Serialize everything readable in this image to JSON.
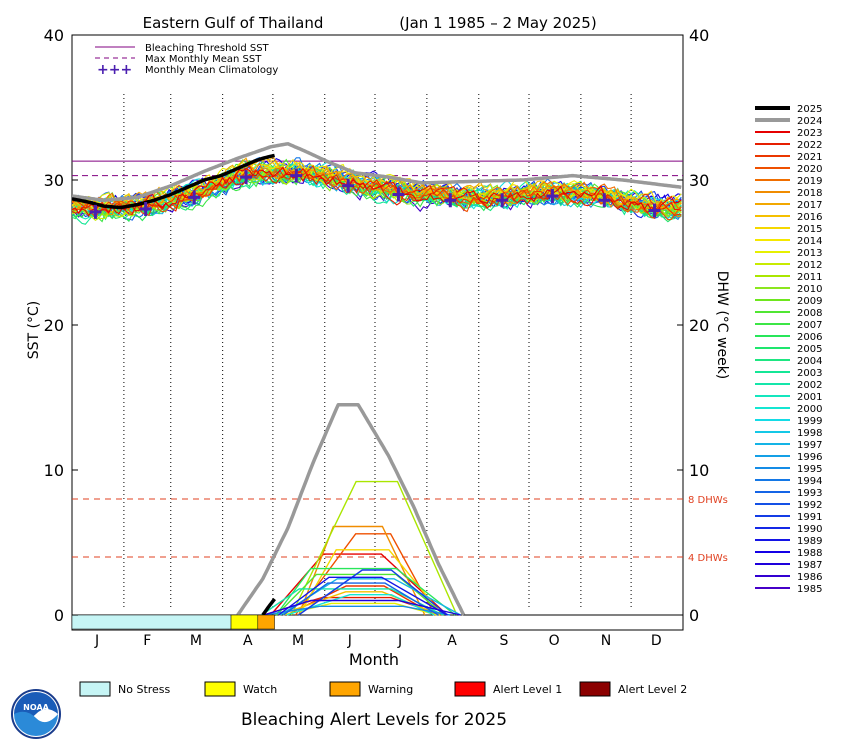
{
  "chart_data": {
    "type": "line",
    "title": "Eastern Gulf of Thailand",
    "date_range": "(Jan 1 1985 – 2 May 2025)",
    "xlabel": "Month",
    "ylabel_left": "SST (°C)",
    "ylabel_right": "DHW (°C week)",
    "ylim": [
      0,
      40
    ],
    "y_ticks": [
      0,
      10,
      20,
      30,
      40
    ],
    "x_ticks": [
      "J",
      "F",
      "M",
      "A",
      "M",
      "J",
      "J",
      "A",
      "S",
      "O",
      "N",
      "D"
    ],
    "bleaching_threshold_sst": 31.3,
    "max_monthly_mean_sst": 30.3,
    "dhw_reference_lines": [
      {
        "value": 8,
        "label": "8 DHWs"
      },
      {
        "value": 4,
        "label": "4 DHWs"
      }
    ],
    "legend_top": [
      {
        "label": "Bleaching Threshold SST",
        "color": "#800080",
        "style": "solid"
      },
      {
        "label": "Max Monthly Mean SST",
        "color": "#800080",
        "style": "dashed"
      },
      {
        "label": "Monthly Mean Climatology",
        "color": "#4b1fb0",
        "style": "plus"
      }
    ],
    "climatology": {
      "doy": [
        15,
        45,
        74,
        105,
        135,
        166,
        196,
        227,
        258,
        288,
        319,
        349
      ],
      "values": [
        27.8,
        28.0,
        28.8,
        30.2,
        30.3,
        29.6,
        29.0,
        28.6,
        28.6,
        28.9,
        28.6,
        27.9
      ]
    },
    "years": [
      "2025",
      "2024",
      "2023",
      "2022",
      "2021",
      "2020",
      "2019",
      "2018",
      "2017",
      "2016",
      "2015",
      "2014",
      "2013",
      "2012",
      "2011",
      "2010",
      "2009",
      "2008",
      "2007",
      "2006",
      "2005",
      "2004",
      "2003",
      "2002",
      "2001",
      "2000",
      "1999",
      "1998",
      "1997",
      "1996",
      "1995",
      "1994",
      "1993",
      "1992",
      "1991",
      "1990",
      "1989",
      "1988",
      "1987",
      "1986",
      "1985"
    ],
    "year_colors": [
      "#000000",
      "#999999",
      "#e60000",
      "#e61e00",
      "#eb3700",
      "#ef5000",
      "#f06e00",
      "#f08c00",
      "#f2a800",
      "#f5c000",
      "#f5d800",
      "#f5e800",
      "#e6f000",
      "#c8eb00",
      "#aae600",
      "#8ce61e",
      "#6ee61e",
      "#50e632",
      "#3ce646",
      "#28e65a",
      "#1ee66e",
      "#1ee682",
      "#14e696",
      "#14e6aa",
      "#14e6be",
      "#14e6d2",
      "#14dce6",
      "#14c8e6",
      "#14b4e6",
      "#14a0e6",
      "#148ce6",
      "#1478e6",
      "#1464e6",
      "#1450e6",
      "#143ce6",
      "#1428e6",
      "#1414e6",
      "#1400e6",
      "#1e00dc",
      "#3200d2",
      "#4600c8"
    ],
    "series_2025_sst": {
      "doy": [
        1,
        10,
        20,
        30,
        40,
        50,
        60,
        70,
        80,
        90,
        100,
        110,
        115,
        122
      ],
      "values": [
        28.7,
        28.5,
        28.2,
        28.1,
        28.3,
        28.6,
        29.0,
        29.5,
        30.0,
        30.3,
        30.8,
        31.3,
        31.5,
        31.7
      ]
    },
    "series_2024_sst": {
      "doy": [
        1,
        20,
        40,
        60,
        80,
        100,
        120,
        130,
        140,
        155,
        170,
        190,
        210,
        240,
        270,
        300,
        330,
        365
      ],
      "values": [
        28.9,
        28.6,
        28.8,
        29.6,
        30.6,
        31.5,
        32.3,
        32.5,
        32.0,
        31.2,
        30.5,
        30.2,
        29.8,
        29.9,
        30.0,
        30.3,
        30.0,
        29.5
      ]
    },
    "series_2024_dhw": {
      "doy": [
        100,
        115,
        130,
        145,
        160,
        172,
        190,
        205,
        220,
        235
      ],
      "values": [
        0,
        2.5,
        6.0,
        10.5,
        14.5,
        14.5,
        11.0,
        7.5,
        3.5,
        0
      ]
    },
    "series_2025_dhw": {
      "doy": [
        115,
        118,
        122
      ],
      "values": [
        0,
        0.5,
        1.1
      ]
    },
    "alert_bar": [
      {
        "level": "No Stress",
        "start_doy": 1,
        "end_doy": 96
      },
      {
        "level": "Watch",
        "start_doy": 96,
        "end_doy": 112
      },
      {
        "level": "Warning",
        "start_doy": 112,
        "end_doy": 122
      }
    ],
    "alert_levels": [
      {
        "label": "No Stress",
        "color": "#c6f5f5"
      },
      {
        "label": "Watch",
        "color": "#ffff00"
      },
      {
        "label": "Warning",
        "color": "#ffa500"
      },
      {
        "label": "Alert Level 1",
        "color": "#ff0000"
      },
      {
        "label": "Alert Level 2",
        "color": "#8b0000"
      }
    ],
    "bottom_title": "Bleaching Alert Levels for 2025",
    "logo_text": "NOAA"
  }
}
